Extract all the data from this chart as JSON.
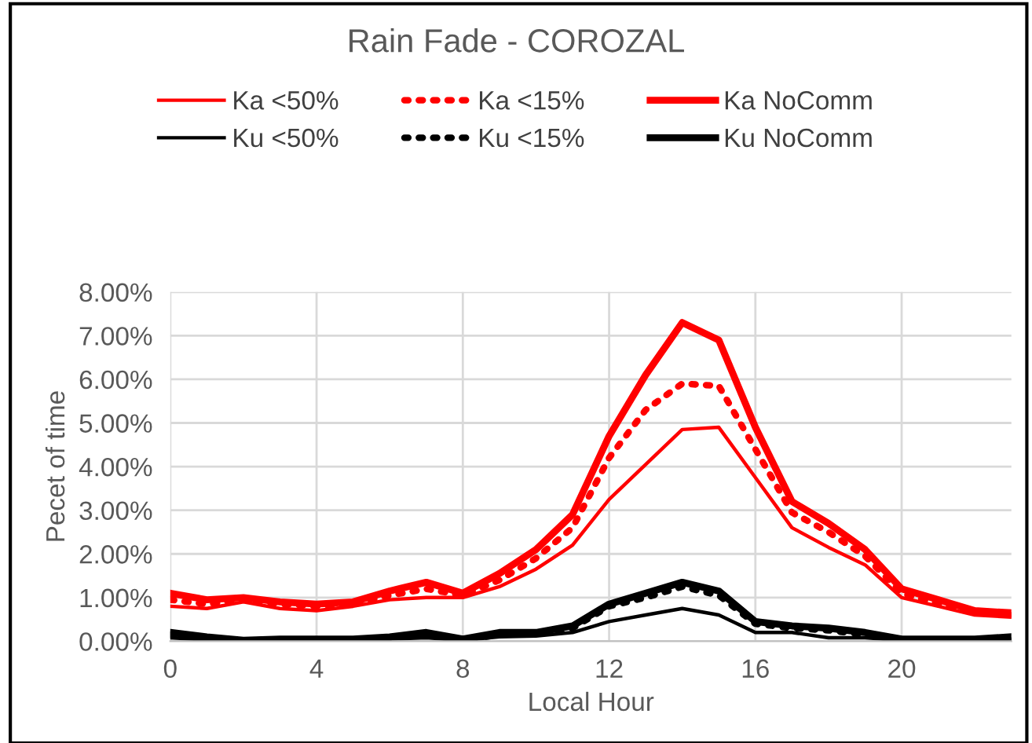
{
  "chart_data": {
    "type": "line",
    "title": "Rain Fade - COROZAL",
    "xlabel": "Local Hour",
    "ylabel": "Pecet of time",
    "x": [
      0,
      1,
      2,
      3,
      4,
      5,
      6,
      7,
      8,
      9,
      10,
      11,
      12,
      13,
      14,
      15,
      16,
      17,
      18,
      19,
      20,
      21,
      22,
      23
    ],
    "series": [
      {
        "name": "Ka <50%",
        "color": "#ff0000",
        "line_style": "solid",
        "values": [
          0.8,
          0.75,
          0.9,
          0.75,
          0.7,
          0.8,
          0.95,
          1.0,
          1.0,
          1.25,
          1.65,
          2.2,
          3.25,
          4.05,
          4.85,
          4.9,
          3.75,
          2.6,
          2.15,
          1.75,
          1.0,
          0.8,
          0.6,
          0.55
        ]
      },
      {
        "name": "Ka <15%",
        "color": "#ff0000",
        "line_style": "dotted",
        "values": [
          0.95,
          0.85,
          0.95,
          0.85,
          0.8,
          0.85,
          1.05,
          1.2,
          1.05,
          1.4,
          1.9,
          2.6,
          4.2,
          5.3,
          5.9,
          5.85,
          4.4,
          2.95,
          2.5,
          1.95,
          1.1,
          0.85,
          0.65,
          0.6
        ]
      },
      {
        "name": "Ka NoComm",
        "color": "#ff0000",
        "line_style": "solid",
        "values": [
          1.1,
          0.95,
          1.0,
          0.9,
          0.85,
          0.9,
          1.15,
          1.35,
          1.1,
          1.55,
          2.1,
          2.9,
          4.7,
          6.1,
          7.3,
          6.9,
          4.9,
          3.2,
          2.7,
          2.1,
          1.2,
          0.95,
          0.7,
          0.65
        ]
      },
      {
        "name": "Ku <50%",
        "color": "#000000",
        "line_style": "solid",
        "values": [
          0.08,
          0.03,
          0.0,
          0.02,
          0.02,
          0.02,
          0.05,
          0.08,
          0.02,
          0.1,
          0.12,
          0.2,
          0.45,
          0.6,
          0.75,
          0.6,
          0.2,
          0.2,
          0.08,
          0.08,
          0.02,
          0.02,
          0.02,
          0.05
        ]
      },
      {
        "name": "Ku <15%",
        "color": "#000000",
        "line_style": "dotted",
        "values": [
          0.15,
          0.05,
          0.02,
          0.03,
          0.03,
          0.03,
          0.08,
          0.15,
          0.03,
          0.15,
          0.18,
          0.3,
          0.8,
          1.0,
          1.25,
          1.05,
          0.4,
          0.3,
          0.25,
          0.15,
          0.03,
          0.03,
          0.03,
          0.08
        ]
      },
      {
        "name": "Ku NoComm",
        "color": "#000000",
        "line_style": "solid",
        "values": [
          0.2,
          0.1,
          0.02,
          0.05,
          0.05,
          0.05,
          0.1,
          0.2,
          0.05,
          0.2,
          0.2,
          0.35,
          0.85,
          1.1,
          1.35,
          1.15,
          0.45,
          0.35,
          0.3,
          0.2,
          0.05,
          0.05,
          0.05,
          0.1
        ]
      }
    ],
    "xlim": [
      0,
      23
    ],
    "xticks": [
      0,
      4,
      8,
      12,
      16,
      20
    ],
    "ylim": [
      0,
      8
    ],
    "yticks": [
      {
        "value": 0,
        "label": "0.00%"
      },
      {
        "value": 1,
        "label": "1.00%"
      },
      {
        "value": 2,
        "label": "2.00%"
      },
      {
        "value": 3,
        "label": "3.00%"
      },
      {
        "value": 4,
        "label": "4.00%"
      },
      {
        "value": 5,
        "label": "5.00%"
      },
      {
        "value": 6,
        "label": "6.00%"
      },
      {
        "value": 7,
        "label": "7.00%"
      },
      {
        "value": 8,
        "label": "8.00%"
      }
    ],
    "grid": true,
    "legend": "top"
  }
}
